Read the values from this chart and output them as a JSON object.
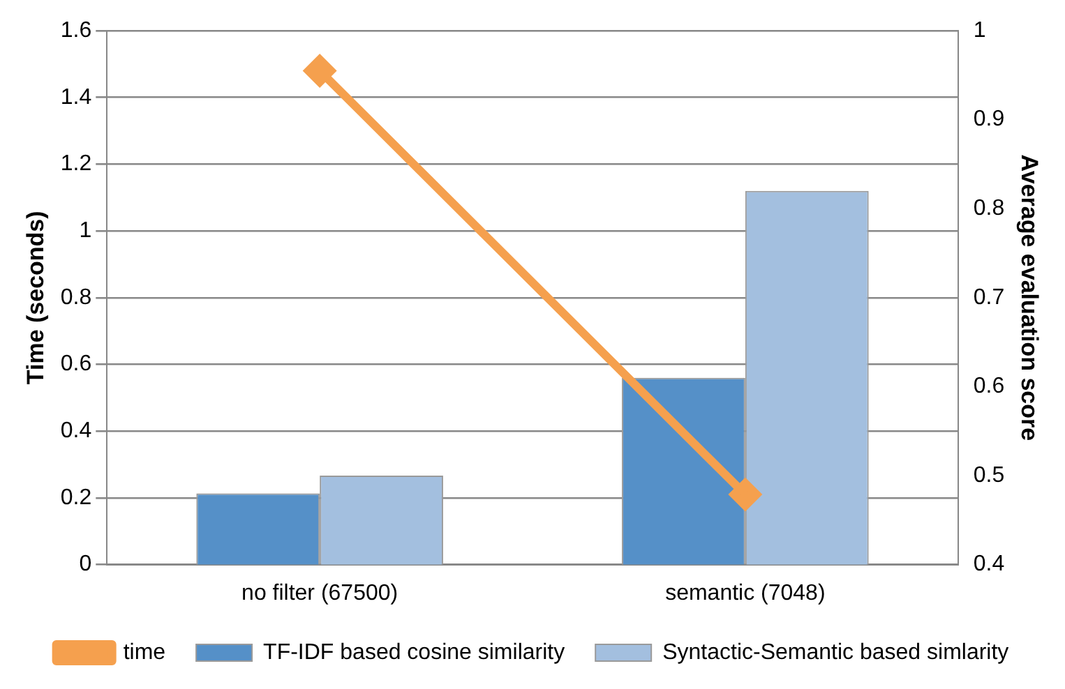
{
  "chart_data": {
    "type": "bar",
    "categories": [
      "no filter (67500)",
      "semantic (7048)"
    ],
    "ylabel": "Time (seconds)",
    "y2label": "Average evaluation score",
    "series": [
      {
        "name": "TF-IDF based cosine similarity",
        "color": "#5590c8",
        "values": [
          0.48,
          0.61
        ],
        "axis": "y2"
      },
      {
        "name": "Syntactic-Semantic based simlarity",
        "color": "#a3bfdf",
        "values": [
          0.5,
          0.82
        ],
        "axis": "y2"
      },
      {
        "name": "time",
        "type": "line",
        "color": "#f5a04e",
        "values": [
          1.48,
          0.21
        ],
        "marker": "diamond"
      }
    ],
    "ylim": [
      0,
      1.6
    ],
    "yticks": [
      0,
      0.2,
      0.4,
      0.6,
      0.8,
      1,
      1.2,
      1.4,
      1.6
    ],
    "y2lim": [
      0.4,
      1
    ],
    "y2ticks": [
      0.4,
      0.5,
      0.6,
      0.7,
      0.8,
      0.9,
      1
    ],
    "grid": "y",
    "legend": "bottom"
  }
}
